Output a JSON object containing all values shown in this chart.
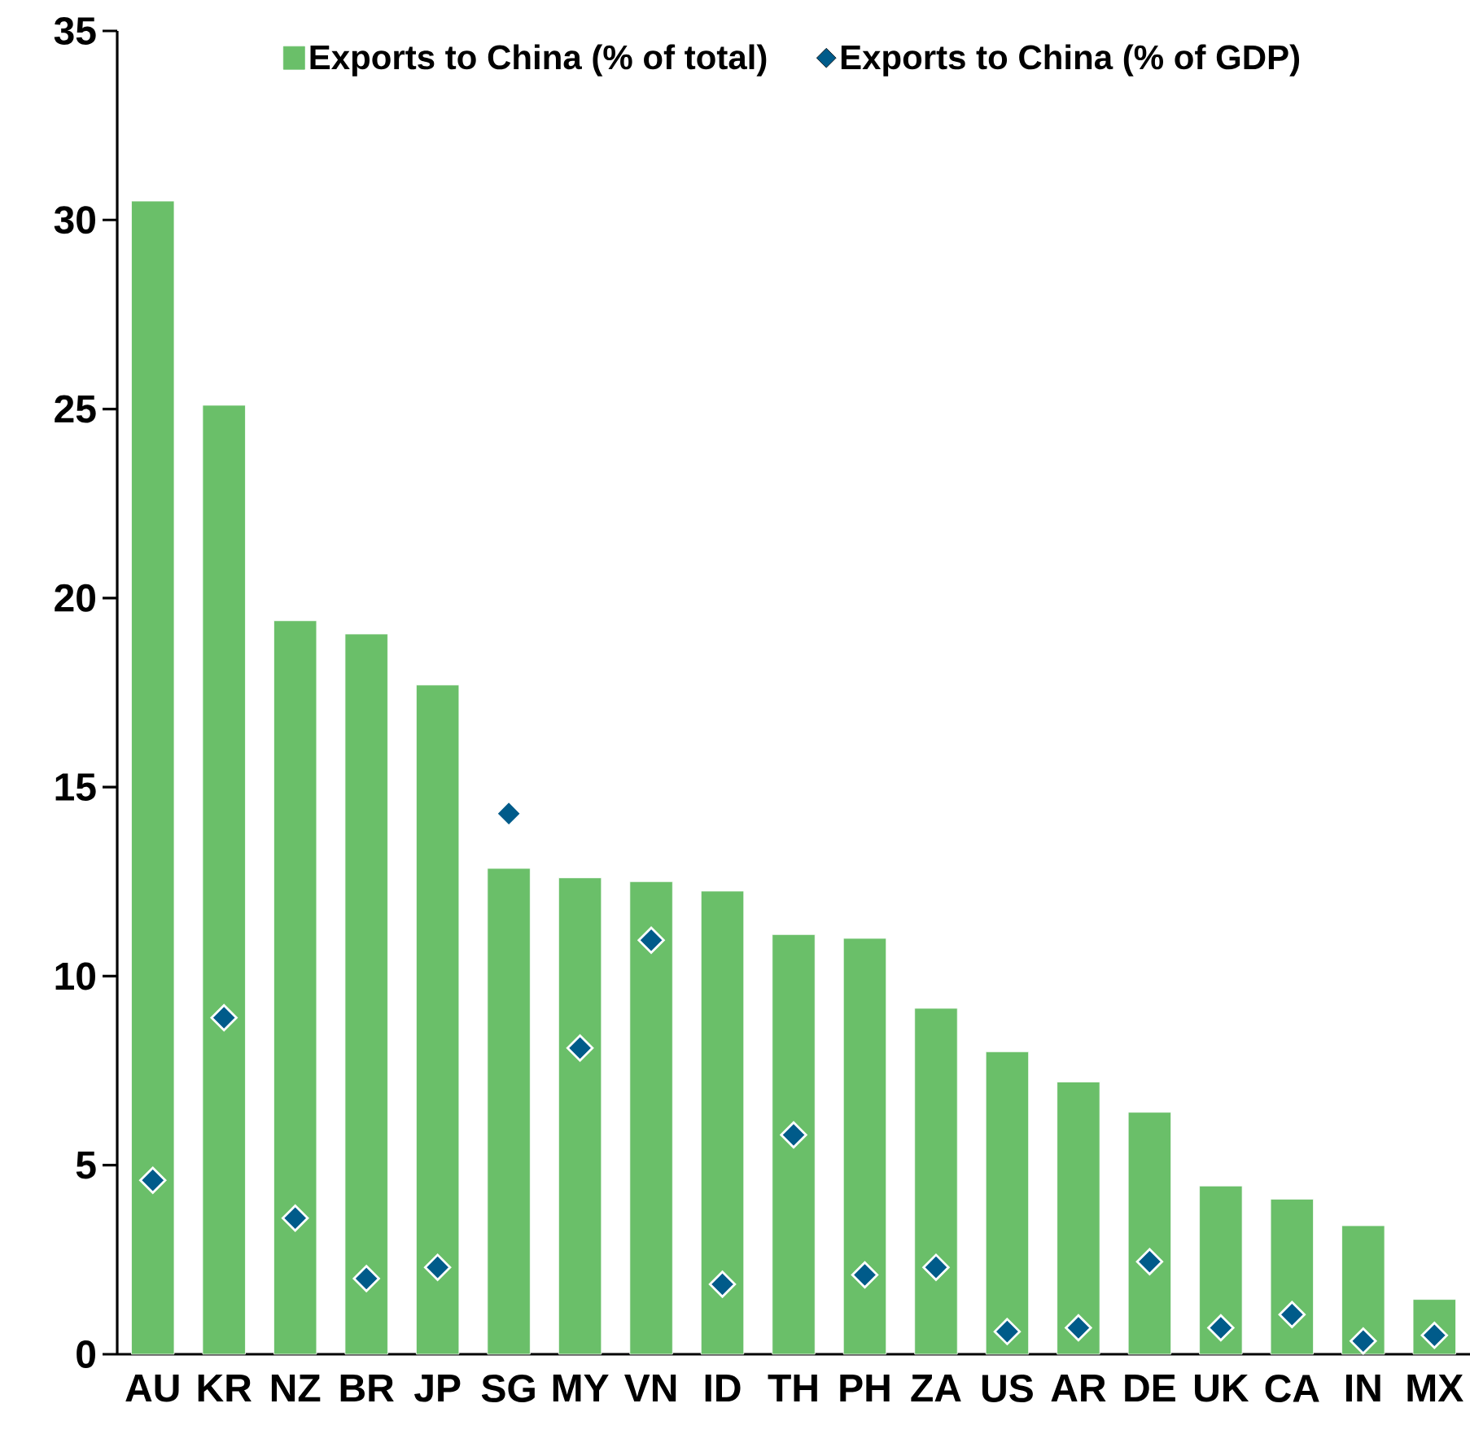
{
  "chart_data": {
    "type": "bar",
    "categories": [
      "AU",
      "KR",
      "NZ",
      "BR",
      "JP",
      "SG",
      "MY",
      "VN",
      "ID",
      "TH",
      "PH",
      "ZA",
      "US",
      "AR",
      "DE",
      "UK",
      "CA",
      "IN",
      "MX"
    ],
    "series": [
      {
        "name": "Exports to China (% of total)",
        "color": "#6abf69",
        "values": [
          30.5,
          25.1,
          19.4,
          19.05,
          17.7,
          12.85,
          12.6,
          12.5,
          12.25,
          11.1,
          11.0,
          9.15,
          8.0,
          7.2,
          6.4,
          4.45,
          4.1,
          3.4,
          1.45
        ]
      },
      {
        "name": "Exports to China (% of GDP)",
        "type": "scatter",
        "marker": "diamond",
        "color": "#005b8a",
        "values": [
          4.6,
          8.9,
          3.6,
          2.0,
          2.3,
          14.3,
          8.1,
          10.95,
          1.85,
          5.8,
          2.1,
          2.3,
          0.6,
          0.7,
          2.45,
          0.7,
          1.05,
          0.35,
          0.5
        ]
      }
    ],
    "ylim": [
      0,
      35
    ],
    "yticks": [
      0,
      5,
      10,
      15,
      20,
      25,
      30,
      35
    ],
    "legend": "top"
  }
}
